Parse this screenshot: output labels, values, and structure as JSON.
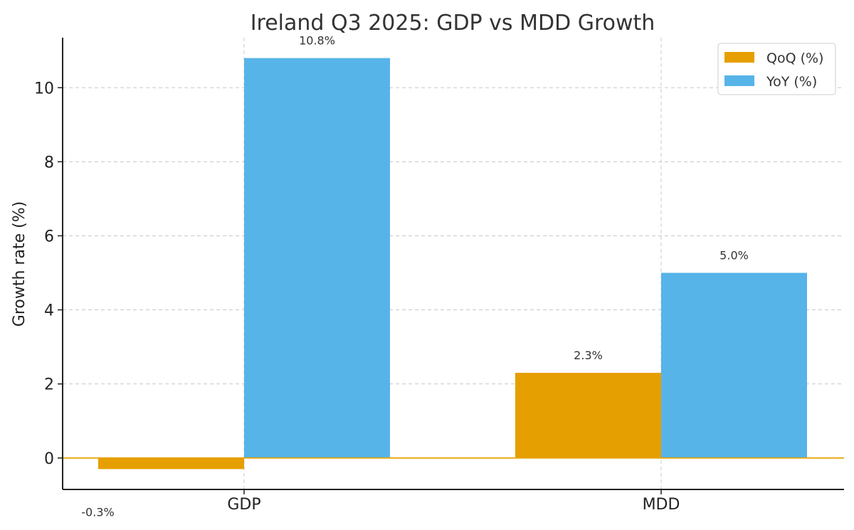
{
  "chart_data": {
    "type": "bar",
    "title": "Ireland Q3 2025: GDP vs MDD Growth",
    "xlabel": "",
    "ylabel": "Growth rate (%)",
    "categories": [
      "GDP",
      "MDD"
    ],
    "series": [
      {
        "name": "QoQ (%)",
        "color": "#E69F00",
        "values": [
          -0.3,
          2.3
        ],
        "labels": [
          "-0.3%",
          "2.3%"
        ]
      },
      {
        "name": "YoY (%)",
        "color": "#56B4E9",
        "values": [
          10.8,
          5.0
        ],
        "labels": [
          "10.8%",
          "5.0%"
        ]
      }
    ],
    "ylim": [
      -0.85,
      11.35
    ],
    "yticks": [
      0,
      2,
      4,
      6,
      8,
      10
    ],
    "grid": true,
    "zero_line_color": "#E69F00",
    "legend_position": "top-right"
  }
}
